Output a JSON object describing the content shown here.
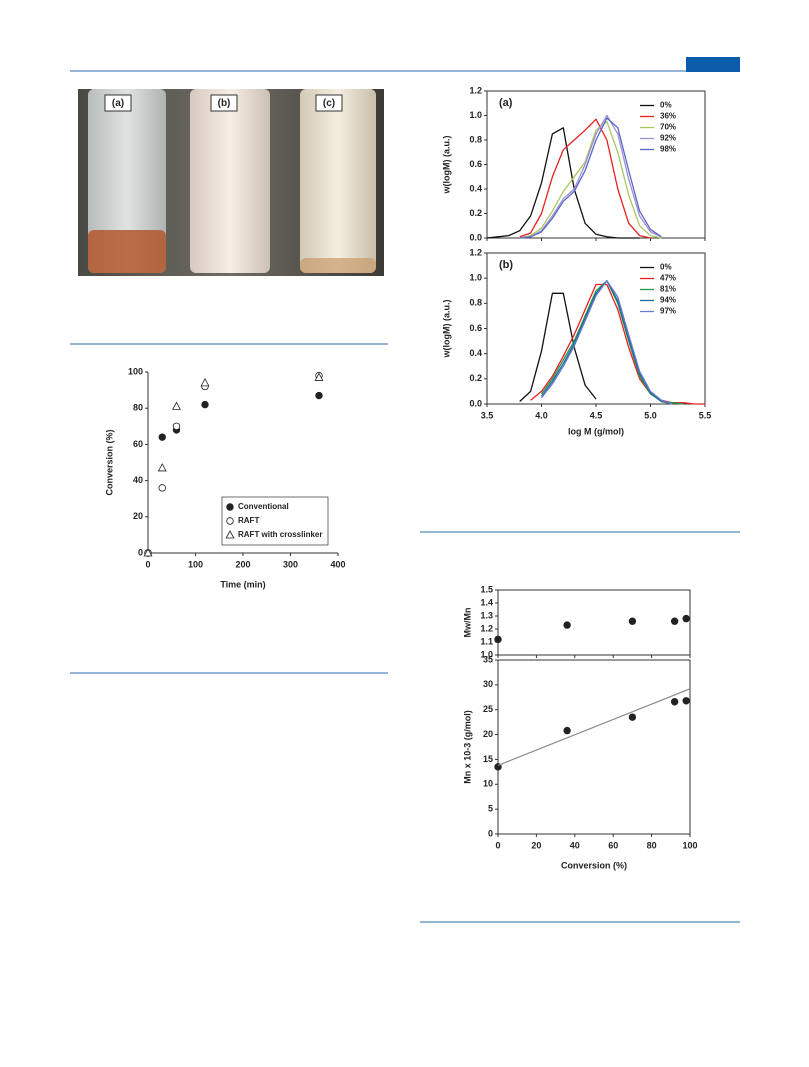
{
  "photo": {
    "labels": [
      "(a)",
      "(b)",
      "(c)"
    ]
  },
  "chart_data": [
    {
      "type": "scatter",
      "xlabel": "Time (min)",
      "ylabel": "Conversion (%)",
      "xlim": [
        0,
        400
      ],
      "ylim": [
        0,
        100
      ],
      "xticks": [
        0,
        100,
        200,
        300,
        400
      ],
      "yticks": [
        0,
        20,
        40,
        60,
        80,
        100
      ],
      "legend": "lower right",
      "frame": "axes",
      "series": [
        {
          "name": "Conventional",
          "color": "#222222",
          "marker": "filled-circle",
          "x": [
            0,
            30,
            60,
            120,
            360
          ],
          "values": [
            0,
            64,
            68,
            82,
            87
          ]
        },
        {
          "name": "RAFT",
          "color": "#222222",
          "marker": "open-circle",
          "x": [
            0,
            30,
            60,
            120,
            360
          ],
          "values": [
            0,
            36,
            70,
            92,
            98
          ]
        },
        {
          "name": "RAFT with crosslinker",
          "color": "#222222",
          "marker": "open-triangle",
          "x": [
            0,
            30,
            60,
            120,
            360
          ],
          "values": [
            0,
            47,
            81,
            94,
            97
          ]
        }
      ]
    },
    {
      "type": "line",
      "panel_label": "(a)",
      "ylabel": "w(logM)  (a.u.)",
      "xlim": [
        3.5,
        5.5
      ],
      "ylim": [
        0,
        1.2
      ],
      "xticks": [
        3.5,
        4,
        4.5,
        5,
        5.5
      ],
      "yticks": [
        {
          "value": 0,
          "label": "0.0"
        },
        0.2,
        0.4,
        0.6,
        0.8,
        {
          "value": 1,
          "label": "1.0"
        },
        1.2
      ],
      "legend": "upper right",
      "frame": "box",
      "x": [
        3.5,
        3.6,
        3.7,
        3.8,
        3.9,
        4,
        4.1,
        4.2,
        4.3,
        4.4,
        4.5,
        4.6,
        4.7,
        4.8,
        4.9,
        5,
        5.1,
        5.2,
        5.3,
        5.4,
        5.5
      ],
      "series": [
        {
          "name": "0%",
          "color": "#111111",
          "values": [
            0,
            0.01,
            0.02,
            0.06,
            0.18,
            0.45,
            0.85,
            0.9,
            0.4,
            0.12,
            0.03,
            0.01,
            0,
            0,
            0,
            null,
            null,
            null,
            null,
            null,
            null
          ]
        },
        {
          "name": "36%",
          "color": "#e82020",
          "values": [
            null,
            null,
            null,
            0.01,
            0.04,
            0.2,
            0.5,
            0.72,
            0.8,
            0.88,
            0.97,
            0.8,
            0.4,
            0.12,
            0.02,
            0,
            null,
            null,
            null,
            null,
            null
          ]
        },
        {
          "name": "70%",
          "color": "#a8c860",
          "values": [
            null,
            null,
            null,
            0,
            0.02,
            0.08,
            0.22,
            0.38,
            0.5,
            0.62,
            0.88,
            0.95,
            0.7,
            0.35,
            0.1,
            0.02,
            0,
            null,
            null,
            null,
            null
          ]
        },
        {
          "name": "92%",
          "color": "#a090d0",
          "values": [
            null,
            null,
            null,
            0,
            0.01,
            0.06,
            0.18,
            0.32,
            0.4,
            0.6,
            0.85,
            1.0,
            0.85,
            0.48,
            0.18,
            0.05,
            0.01,
            null,
            null,
            null,
            null
          ]
        },
        {
          "name": "98%",
          "color": "#5868c8",
          "values": [
            null,
            null,
            null,
            0,
            0.01,
            0.05,
            0.16,
            0.3,
            0.38,
            0.55,
            0.8,
            0.98,
            0.9,
            0.55,
            0.22,
            0.07,
            0.01,
            null,
            null,
            null,
            null
          ]
        }
      ]
    },
    {
      "type": "line",
      "panel_label": "(b)",
      "xlabel": "log M (g/mol)",
      "ylabel": "w(logM)  (a.u.)",
      "xlim": [
        3.5,
        5.5
      ],
      "ylim": [
        0,
        1.2
      ],
      "xticks": [
        3.5,
        {
          "value": 4,
          "label": "4.0"
        },
        4.5,
        {
          "value": 5,
          "label": "5.0"
        },
        5.5
      ],
      "yticks": [
        {
          "value": 0,
          "label": "0.0"
        },
        0.2,
        0.4,
        0.6,
        0.8,
        {
          "value": 1,
          "label": "1.0"
        },
        1.2
      ],
      "legend": "upper right",
      "frame": "box",
      "x": [
        3.5,
        3.6,
        3.7,
        3.8,
        3.9,
        4,
        4.1,
        4.2,
        4.3,
        4.4,
        4.5,
        4.6,
        4.7,
        4.8,
        4.9,
        5,
        5.1,
        5.2,
        5.3,
        5.4,
        5.5
      ],
      "series": [
        {
          "name": "0%",
          "color": "#111111",
          "values": [
            null,
            null,
            null,
            0.02,
            0.1,
            0.42,
            0.88,
            0.88,
            0.45,
            0.15,
            0.04,
            null,
            null,
            null,
            null,
            null,
            null,
            null,
            null,
            null,
            null
          ]
        },
        {
          "name": "47%",
          "color": "#e82020",
          "values": [
            null,
            null,
            null,
            null,
            0.03,
            0.1,
            0.22,
            0.38,
            0.55,
            0.75,
            0.95,
            0.95,
            0.75,
            0.45,
            0.2,
            0.08,
            0.03,
            0.01,
            0.01,
            0,
            0
          ]
        },
        {
          "name": "81%",
          "color": "#2a9a4a",
          "values": [
            null,
            null,
            null,
            null,
            null,
            0.08,
            0.2,
            0.35,
            0.5,
            0.7,
            0.9,
            0.98,
            0.8,
            0.5,
            0.22,
            0.08,
            0.02,
            0.01,
            0,
            null,
            null
          ]
        },
        {
          "name": "94%",
          "color": "#1a6a9a",
          "values": [
            null,
            null,
            null,
            null,
            null,
            0.06,
            0.18,
            0.32,
            0.48,
            0.68,
            0.88,
            0.98,
            0.82,
            0.52,
            0.24,
            0.09,
            0.02,
            0,
            null,
            null,
            null
          ]
        },
        {
          "name": "97%",
          "color": "#6a7ad0",
          "values": [
            null,
            null,
            null,
            null,
            null,
            0.05,
            0.16,
            0.3,
            0.46,
            0.66,
            0.86,
            0.98,
            0.85,
            0.55,
            0.26,
            0.1,
            0.03,
            0,
            null,
            null,
            null
          ]
        }
      ]
    },
    {
      "type": "scatter",
      "ylabel": "Mw/Mn",
      "frame": "box",
      "xlim": [
        0,
        100
      ],
      "ylim": [
        1.0,
        1.5
      ],
      "xticks": [
        0,
        20,
        40,
        60,
        80,
        100
      ],
      "yticks": [
        {
          "value": 1,
          "label": "1.0"
        },
        1.1,
        1.2,
        1.3,
        1.4,
        1.5
      ],
      "series": [
        {
          "color": "#222222",
          "marker": "filled-circle",
          "x": [
            0,
            36,
            70,
            92,
            98
          ],
          "values": [
            1.12,
            1.23,
            1.26,
            1.26,
            1.28
          ]
        }
      ]
    },
    {
      "type": "scatter",
      "xlabel": "Conversion (%)",
      "ylabel": "Mn x 10-3 (g/mol)",
      "frame": "box",
      "xlim": [
        0,
        100
      ],
      "ylim": [
        0,
        35
      ],
      "xticks": [
        0,
        20,
        40,
        60,
        80,
        100
      ],
      "yticks": [
        0,
        5,
        10,
        15,
        20,
        25,
        30,
        35
      ],
      "series": [
        {
          "color": "#222222",
          "marker": "filled-circle",
          "x": [
            0,
            36,
            70,
            92,
            98
          ],
          "values": [
            13.5,
            20.8,
            23.5,
            26.6,
            26.8
          ]
        }
      ],
      "fit": {
        "color": "#888888",
        "x": [
          0,
          100
        ],
        "values": [
          13.8,
          29.2
        ]
      }
    }
  ]
}
